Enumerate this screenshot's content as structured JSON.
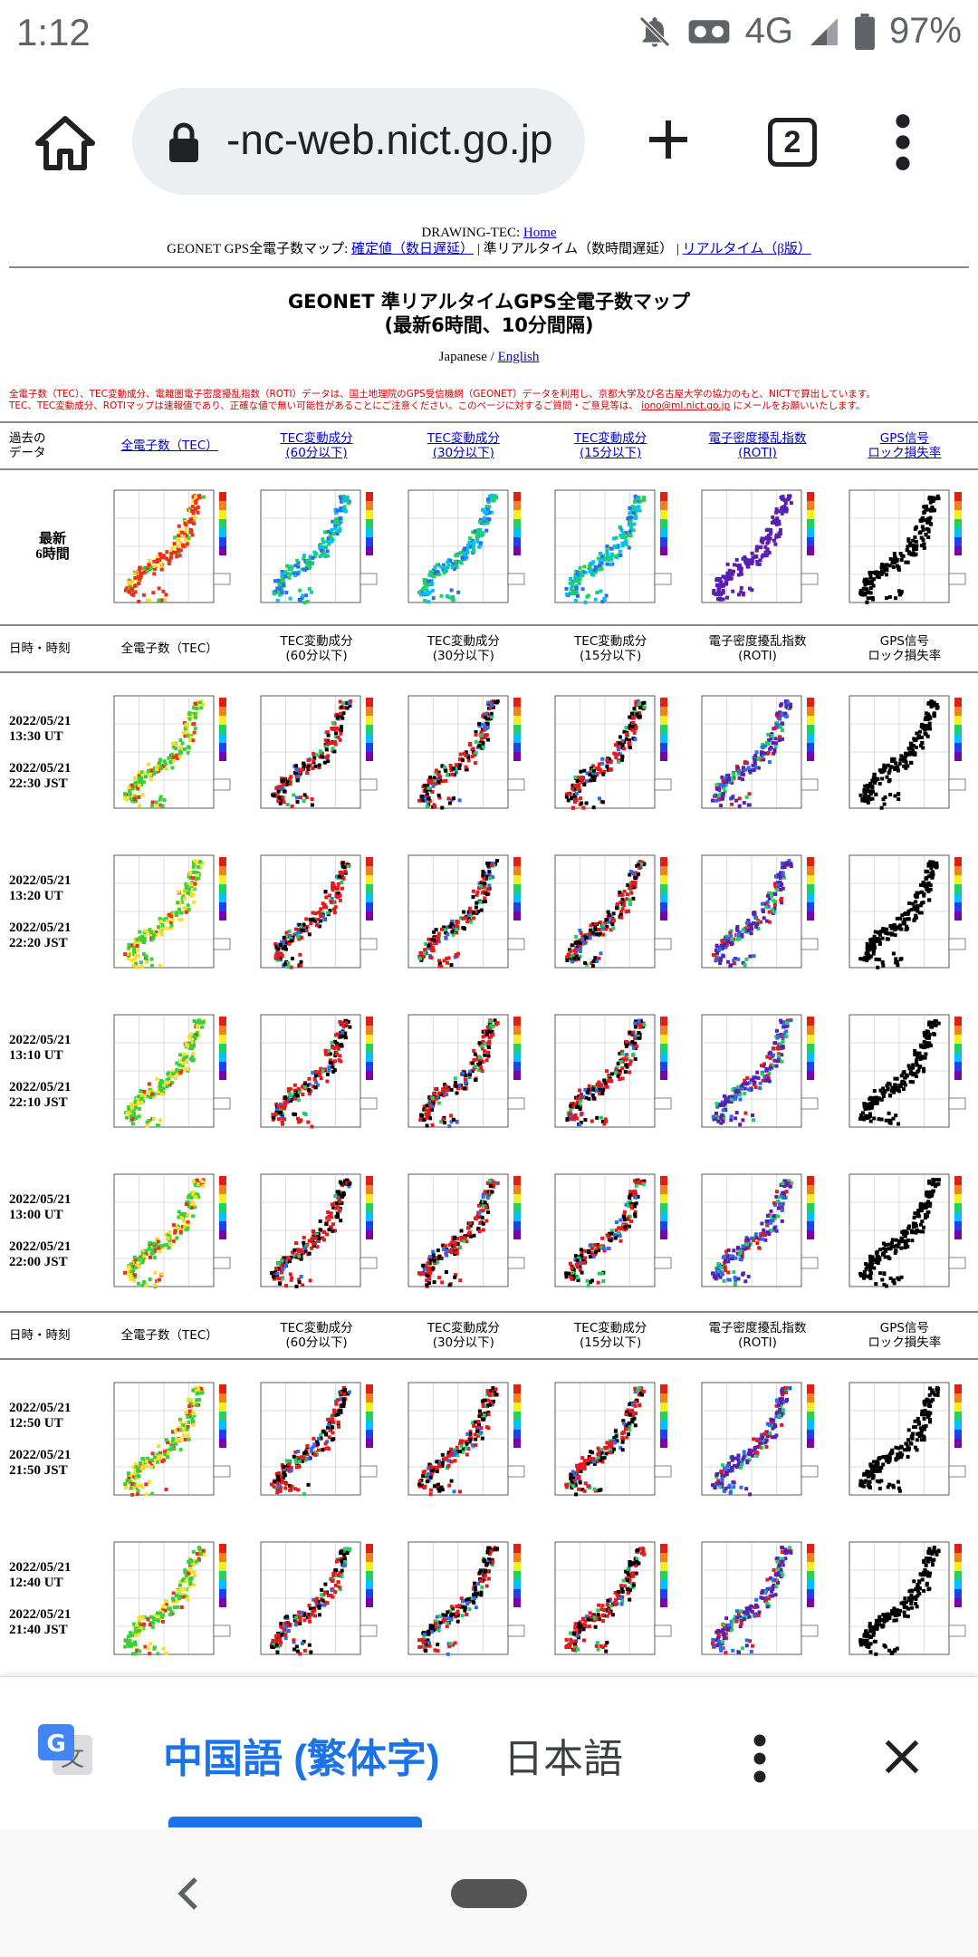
{
  "status": {
    "time": "1:12",
    "network": "4G",
    "battery": "97%"
  },
  "browser": {
    "url": "-nc-web.nict.go.jp",
    "tab_count": "2"
  },
  "page": {
    "nav": {
      "line1_prefix": "DRAWING-TEC:",
      "home": "Home",
      "line2_prefix": "GEONET GPS全電子数マップ:",
      "link_confirmed": "確定値（数日遅延）",
      "sep1": "|",
      "current": "準リアルタイム（数時間遅延）",
      "sep2": "|",
      "link_realtime": "リアルタイム（β版）"
    },
    "title_line1": "GEONET 準リアルタイムGPS全電子数マップ",
    "title_line2": "(最新6時間、10分間隔)",
    "lang": {
      "japanese": "Japanese",
      "slash": "/",
      "english": "English"
    },
    "note_line1": "全電子数（TEC）、TEC変動成分、電離圏電子密度擾乱指数（ROTI）データは、国土地理院のGPS受信機網（GEONET）データを利用し、京都大学及び名古屋大学の協力のもと、NICTで算出しています。",
    "note_line2_a": "TEC、TEC変動成分、ROTIマップは速報値であり、正確な値で無い可能性があることにご注意ください。このページに対するご質問・ご意見等は、",
    "note_email": "iono@ml.nict.go.jp",
    "note_line2_b": "にメールをお願いいたします。",
    "past_header": {
      "first": "過去の\nデータ",
      "cols": [
        "全電子数（TEC）",
        "TEC変動成分\n(60分以下)",
        "TEC変動成分\n(30分以下)",
        "TEC変動成分\n(15分以下)",
        "電子密度擾乱指数\n(ROTI)",
        "GPS信号\nロック損失率"
      ]
    },
    "recent_label": "最新\n6時間",
    "section_header": {
      "first": "日時・時刻",
      "cols": [
        "全電子数（TEC）",
        "TEC変動成分\n(60分以下)",
        "TEC変動成分\n(30分以下)",
        "TEC変動成分\n(15分以下)",
        "電子密度擾乱指数\n(ROTI)",
        "GPS信号\nロック損失率"
      ]
    },
    "rows": [
      {
        "date": "2022/05/21",
        "ut": "13:30 UT",
        "date2": "2022/05/21",
        "jst": "22:30 JST"
      },
      {
        "date": "2022/05/21",
        "ut": "13:20 UT",
        "date2": "2022/05/21",
        "jst": "22:20 JST"
      },
      {
        "date": "2022/05/21",
        "ut": "13:10 UT",
        "date2": "2022/05/21",
        "jst": "22:10 JST"
      },
      {
        "date": "2022/05/21",
        "ut": "13:00 UT",
        "date2": "2022/05/21",
        "jst": "22:00 JST"
      },
      {
        "date": "2022/05/21",
        "ut": "12:50 UT",
        "date2": "2022/05/21",
        "jst": "21:50 JST"
      },
      {
        "date": "2022/05/21",
        "ut": "12:40 UT",
        "date2": "2022/05/21",
        "jst": "21:40 JST"
      }
    ]
  },
  "translate": {
    "source": "中国語 (繁体字)",
    "target": "日本語"
  },
  "map_colors": {
    "tec_low": "#3ccf3c",
    "tec_mid": "#f4e02a",
    "tec_high": "#e8321e",
    "dtec_red": "#e41a1c",
    "dtec_black": "#000000",
    "dtec_blue": "#2b6cf0",
    "roti": "#5a1fb0",
    "lol": "#000000"
  }
}
